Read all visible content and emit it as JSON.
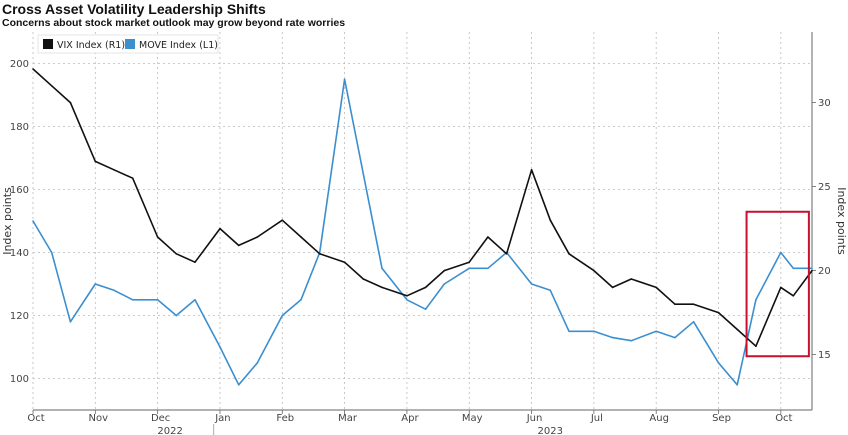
{
  "chart_data": {
    "type": "line",
    "title": "Cross Asset Volatility Leadership Shifts",
    "subtitle": "Concerns about stock market outlook may grow beyond rate worries",
    "ylabel_left": "Index points",
    "ylabel_right": "Index points",
    "ylim_left": [
      90,
      210
    ],
    "ylim_right": [
      11.7,
      34.2
    ],
    "yticks_left": [
      100,
      120,
      140,
      160,
      180,
      200
    ],
    "yticks_right": [
      15,
      20,
      25,
      30
    ],
    "month_labels": [
      "Oct",
      "Nov",
      "Dec",
      "Jan",
      "Feb",
      "Mar",
      "Apr",
      "May",
      "Jun",
      "Jul",
      "Aug",
      "Sep",
      "Oct"
    ],
    "year_labels": [
      "2022",
      "2023"
    ],
    "legend_position": "top-left",
    "grid": true,
    "colors": {
      "vix": "#111111",
      "move": "#3c8fcf",
      "highlight": "#c8102e"
    },
    "series": [
      {
        "name": "VIX Index (R1)",
        "axis": "right",
        "x": [
          0,
          0.3,
          0.6,
          1,
          1.3,
          1.6,
          2,
          2.3,
          2.6,
          3,
          3.3,
          3.6,
          4,
          4.3,
          4.6,
          5,
          5.3,
          5.6,
          6,
          6.3,
          6.6,
          7,
          7.3,
          7.6,
          8,
          8.3,
          8.6,
          9,
          9.3,
          9.6,
          10,
          10.3,
          10.6,
          11,
          11.3,
          11.6,
          12,
          12.2,
          12.5
        ],
        "y": [
          32,
          31,
          30,
          26.5,
          26,
          25.5,
          22,
          21,
          20.5,
          22.5,
          21.5,
          22,
          23,
          22,
          21,
          20.5,
          19.5,
          19,
          18.5,
          19,
          20,
          20.5,
          22,
          21,
          26,
          23,
          21,
          20,
          19,
          19.5,
          19,
          18,
          18,
          17.5,
          16.5,
          15.5,
          19,
          18.5,
          20
        ]
      },
      {
        "name": "MOVE Index (L1)",
        "axis": "left",
        "x": [
          0,
          0.3,
          0.6,
          1,
          1.3,
          1.6,
          2,
          2.3,
          2.6,
          3,
          3.3,
          3.6,
          4,
          4.3,
          4.6,
          5,
          5.3,
          5.6,
          6,
          6.3,
          6.6,
          7,
          7.3,
          7.6,
          8,
          8.3,
          8.6,
          9,
          9.3,
          9.6,
          10,
          10.3,
          10.6,
          11,
          11.3,
          11.6,
          12,
          12.2,
          12.5
        ],
        "y": [
          150,
          140,
          118,
          130,
          128,
          125,
          125,
          120,
          125,
          110,
          98,
          105,
          120,
          125,
          140,
          195,
          165,
          135,
          125,
          122,
          130,
          135,
          135,
          140,
          130,
          128,
          115,
          115,
          113,
          112,
          115,
          113,
          118,
          105,
          98,
          125,
          140,
          135,
          135
        ]
      }
    ]
  }
}
